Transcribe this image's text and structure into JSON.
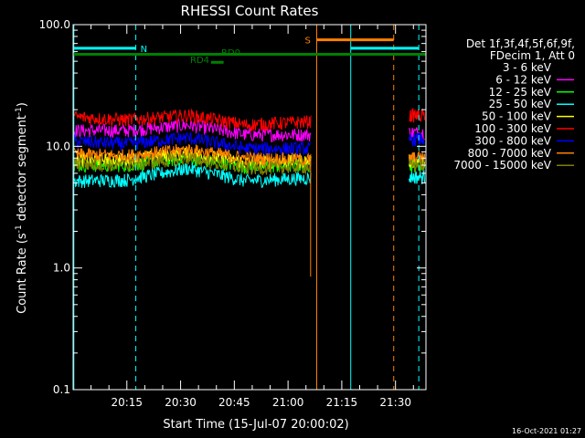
{
  "chart_data": {
    "type": "line",
    "title": "RHESSI Count Rates",
    "xlabel": "Start Time (15-Jul-07 20:00:02)",
    "ylabel": "Count Rate (s",
    "ylabel_sup1": "-1",
    "ylabel_mid": " detector segment",
    "ylabel_sup2": "-1",
    "ylabel_end": ")",
    "yscale": "log",
    "ylim": [
      0.1,
      100.0
    ],
    "xlim_minutes": [
      0,
      98.5
    ],
    "y_ticks": [
      {
        "v": 0.1,
        "label": "0.1"
      },
      {
        "v": 1.0,
        "label": "1.0"
      },
      {
        "v": 10.0,
        "label": "10.0"
      },
      {
        "v": 100.0,
        "label": "100.0"
      }
    ],
    "x_ticks": [
      {
        "v": 15,
        "label": "20:15"
      },
      {
        "v": 30,
        "label": "20:30"
      },
      {
        "v": 45,
        "label": "20:45"
      },
      {
        "v": 60,
        "label": "21:00"
      },
      {
        "v": 75,
        "label": "21:15"
      },
      {
        "v": 90,
        "label": "21:30"
      }
    ],
    "legend_header": [
      "Det 1f,3f,4f,5f,6f,9f,",
      "FDecim 1, Att 0"
    ],
    "legend_placement": "right",
    "series": [
      {
        "name": "3 - 6 keV",
        "color": "#000000",
        "base": [
          6.6,
          6.8,
          7.8,
          6.3,
          6.3
        ],
        "end_level": 6.6
      },
      {
        "name": "6 - 12 keV",
        "color": "#ff00ff",
        "base": [
          13.5,
          13.5,
          15.0,
          12.5,
          12.5
        ],
        "end_level": 13.0
      },
      {
        "name": "12 - 25 keV",
        "color": "#00ff00",
        "base": [
          7.0,
          7.0,
          8.0,
          6.8,
          7.0
        ],
        "end_level": 7.0
      },
      {
        "name": "25 - 50 keV",
        "color": "#00ffff",
        "base": [
          5.2,
          5.3,
          6.6,
          5.2,
          5.5
        ],
        "end_level": 5.6
      },
      {
        "name": "50 - 100 keV",
        "color": "#ffff00",
        "base": [
          7.8,
          7.8,
          8.8,
          7.4,
          7.6
        ],
        "end_level": 7.6
      },
      {
        "name": "100 - 300 keV",
        "color": "#ff0000",
        "base": [
          17.5,
          16.5,
          18.0,
          15.0,
          16.0
        ],
        "end_level": 18.0
      },
      {
        "name": "300 - 800 keV",
        "color": "#0000ff",
        "base": [
          11.0,
          10.5,
          11.8,
          9.6,
          9.6
        ],
        "end_level": 11.5
      },
      {
        "name": "800 - 7000 keV",
        "color": "#ff8000",
        "base": [
          8.6,
          8.4,
          9.4,
          8.0,
          7.8
        ],
        "end_level": 8.0
      },
      {
        "name": "7000 - 15000 keV",
        "color": "#808000",
        "base": [
          7.2,
          7.0,
          8.0,
          6.6,
          6.8
        ],
        "end_level": 7.0
      }
    ],
    "data_gaps_minutes": [
      [
        66.5,
        93.8
      ]
    ],
    "annotations": [
      {
        "label": "N",
        "color": "#00ffff",
        "y": 64,
        "x_start": 0,
        "x_end": 17.5
      },
      {
        "label": "N",
        "color": "#00ffff",
        "y": 64,
        "x_start": 77.5,
        "x_end": 96.5
      },
      {
        "label": "S",
        "color": "#ff8000",
        "y": 75,
        "x_start": 68.0,
        "x_end": 89.5
      },
      {
        "label": "RD0",
        "color": "#008000",
        "y": 57,
        "x_start": 0,
        "x_end": 98.5
      },
      {
        "label": "RD4",
        "color": "#008000",
        "y": 49,
        "x_start": 38.5,
        "x_end": 42.0
      }
    ],
    "vertical_markers": [
      {
        "x": 0.2,
        "color": "#00ffff",
        "style": "solid"
      },
      {
        "x": 17.5,
        "color": "#00ffff",
        "style": "dashed"
      },
      {
        "x": 77.5,
        "color": "#00ffff",
        "style": "solid"
      },
      {
        "x": 96.5,
        "color": "#00ffff",
        "style": "dashed"
      },
      {
        "x": 68.0,
        "color": "#ff8000",
        "style": "solid"
      },
      {
        "x": 89.5,
        "color": "#ff8000",
        "style": "dashed"
      }
    ],
    "spike": {
      "x": 66.3,
      "y_low": 0.85,
      "color": "#ff8000"
    },
    "grid": false,
    "timestamp": "16-Oct-2021 01:27"
  }
}
